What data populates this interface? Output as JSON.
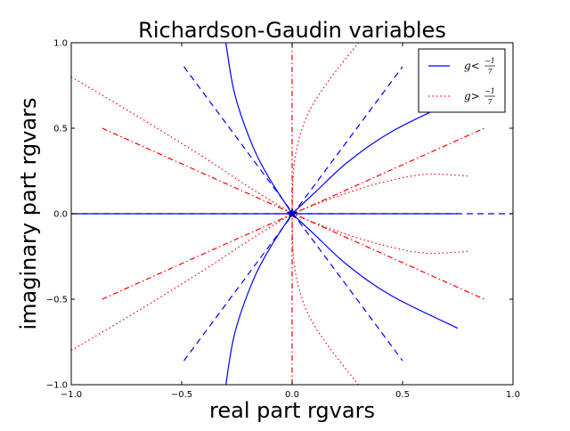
{
  "chart_data": {
    "type": "line",
    "title": "Richardson-Gaudin variables",
    "xlabel": "real part rgvars",
    "ylabel": "imaginary part rgvars",
    "xlim": [
      -1.0,
      1.0
    ],
    "ylim": [
      -1.0,
      1.0
    ],
    "xticks": [
      -1.0,
      -0.5,
      0.0,
      0.5,
      1.0
    ],
    "yticks": [
      -1.0,
      -0.5,
      0.0,
      0.5,
      1.0
    ],
    "xtick_labels": [
      "−1.0",
      "−0.5",
      "0.0",
      "0.5",
      "1.0"
    ],
    "ytick_labels": [
      "−1.0",
      "−0.5",
      "0.0",
      "0.5",
      "1.0"
    ],
    "grid": false,
    "legend_position": "top-right",
    "legend": [
      {
        "symbol": "g",
        "relation": "<",
        "numerator": "−1",
        "denominator": "7",
        "color": "#0000ff",
        "dash": "solid"
      },
      {
        "symbol": "g",
        "relation": ">",
        "numerator": "−1",
        "denominator": "7",
        "color": "#ff0000",
        "dash": "dotted"
      }
    ],
    "series": [
      {
        "group": "g<-1/7",
        "color": "#0000ff",
        "dash": "solid",
        "points": [
          [
            -0.3,
            1.0
          ],
          [
            -0.26,
            0.7
          ],
          [
            -0.18,
            0.4
          ],
          [
            -0.1,
            0.2
          ],
          [
            0.0,
            0.0
          ]
        ]
      },
      {
        "group": "g<-1/7",
        "color": "#0000ff",
        "dash": "solid",
        "points": [
          [
            -0.3,
            -1.0
          ],
          [
            -0.26,
            -0.7
          ],
          [
            -0.18,
            -0.4
          ],
          [
            -0.1,
            -0.2
          ],
          [
            0.0,
            0.0
          ]
        ]
      },
      {
        "group": "g<-1/7",
        "color": "#0000ff",
        "dash": "solid",
        "points": [
          [
            0.0,
            0.0
          ],
          [
            0.1,
            0.12
          ],
          [
            0.25,
            0.3
          ],
          [
            0.45,
            0.48
          ],
          [
            0.75,
            0.67
          ]
        ]
      },
      {
        "group": "g<-1/7",
        "color": "#0000ff",
        "dash": "solid",
        "points": [
          [
            0.0,
            0.0
          ],
          [
            0.1,
            -0.12
          ],
          [
            0.25,
            -0.3
          ],
          [
            0.45,
            -0.48
          ],
          [
            0.75,
            -0.67
          ]
        ]
      },
      {
        "group": "g<-1/7",
        "color": "#0000ff",
        "dash": "solid",
        "points": [
          [
            -1.0,
            0.0
          ],
          [
            0.75,
            0.0
          ]
        ]
      },
      {
        "group": "g<-1/7",
        "color": "#0000ff",
        "dash": "dashed",
        "points": [
          [
            -0.49,
            0.86
          ],
          [
            0.5,
            -0.86
          ]
        ]
      },
      {
        "group": "g<-1/7",
        "color": "#0000ff",
        "dash": "dashed",
        "points": [
          [
            -0.49,
            -0.86
          ],
          [
            0.5,
            0.86
          ]
        ]
      },
      {
        "group": "g<-1/7",
        "color": "#0000ff",
        "dash": "dashed",
        "points": [
          [
            -1.0,
            0.0
          ],
          [
            1.0,
            0.0
          ]
        ]
      },
      {
        "group": "g>-1/7",
        "color": "#ff0000",
        "dash": "dashdot",
        "points": [
          [
            0.0,
            1.0
          ],
          [
            0.0,
            -1.0
          ]
        ]
      },
      {
        "group": "g>-1/7",
        "color": "#ff0000",
        "dash": "dashdot",
        "points": [
          [
            -0.86,
            0.5
          ],
          [
            0.87,
            -0.5
          ]
        ]
      },
      {
        "group": "g>-1/7",
        "color": "#ff0000",
        "dash": "dashdot",
        "points": [
          [
            -0.86,
            -0.5
          ],
          [
            0.87,
            0.5
          ]
        ]
      },
      {
        "group": "g>-1/7",
        "color": "#ff0000",
        "dash": "dotted",
        "points": [
          [
            -1.0,
            0.8
          ],
          [
            -0.7,
            0.57
          ],
          [
            -0.4,
            0.33
          ],
          [
            -0.2,
            0.16
          ],
          [
            0.0,
            0.0
          ]
        ]
      },
      {
        "group": "g>-1/7",
        "color": "#ff0000",
        "dash": "dotted",
        "points": [
          [
            -1.0,
            -0.8
          ],
          [
            -0.7,
            -0.57
          ],
          [
            -0.4,
            -0.33
          ],
          [
            -0.2,
            -0.16
          ],
          [
            0.0,
            0.0
          ]
        ]
      },
      {
        "group": "g>-1/7",
        "color": "#ff0000",
        "dash": "dotted",
        "points": [
          [
            0.0,
            0.0
          ],
          [
            0.01,
            0.3
          ],
          [
            0.06,
            0.55
          ],
          [
            0.15,
            0.75
          ],
          [
            0.3,
            1.0
          ]
        ]
      },
      {
        "group": "g>-1/7",
        "color": "#ff0000",
        "dash": "dotted",
        "points": [
          [
            0.0,
            0.0
          ],
          [
            0.01,
            -0.3
          ],
          [
            0.06,
            -0.55
          ],
          [
            0.15,
            -0.75
          ],
          [
            0.3,
            -1.0
          ]
        ]
      },
      {
        "group": "g>-1/7",
        "color": "#ff0000",
        "dash": "dotted",
        "points": [
          [
            0.0,
            0.0
          ],
          [
            0.2,
            0.1
          ],
          [
            0.4,
            0.18
          ],
          [
            0.6,
            0.23
          ],
          [
            0.8,
            0.22
          ]
        ]
      },
      {
        "group": "g>-1/7",
        "color": "#ff0000",
        "dash": "dotted",
        "points": [
          [
            0.0,
            0.0
          ],
          [
            0.2,
            -0.1
          ],
          [
            0.4,
            -0.18
          ],
          [
            0.6,
            -0.23
          ],
          [
            0.8,
            -0.22
          ]
        ]
      }
    ],
    "markers": [
      {
        "x": 0.0,
        "y": 0.0,
        "symbol": "star",
        "color": "#0000ff"
      }
    ]
  }
}
